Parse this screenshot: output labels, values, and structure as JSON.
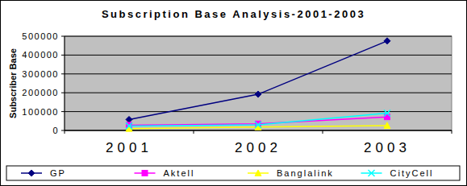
{
  "chart_data": {
    "type": "line",
    "title": "Subscription Base Analysis-2001-2003",
    "y_label": "Subscriber Base",
    "categories": [
      "2001",
      "2002",
      "2003"
    ],
    "series": [
      {
        "name": "GP",
        "color": "#000080",
        "marker": "diamond",
        "line_style": "solid",
        "values": [
          58000,
          192000,
          475000
        ]
      },
      {
        "name": "Aktell",
        "color": "#ff00ff",
        "marker": "square",
        "line_style": "solid",
        "values": [
          28000,
          35000,
          72000
        ]
      },
      {
        "name": "Banglalink",
        "color": "#ffff00",
        "marker": "triangle",
        "line_style": "solid",
        "values": [
          10000,
          18000,
          26000
        ]
      },
      {
        "name": "CityCell",
        "color": "#00ffff",
        "marker": "x",
        "line_style": "solid",
        "values": [
          24000,
          30000,
          92000
        ]
      }
    ],
    "ylim": [
      0,
      500000
    ],
    "yticks": [
      0,
      100000,
      200000,
      300000,
      400000,
      500000
    ],
    "grid": true,
    "legend": "bottom"
  }
}
